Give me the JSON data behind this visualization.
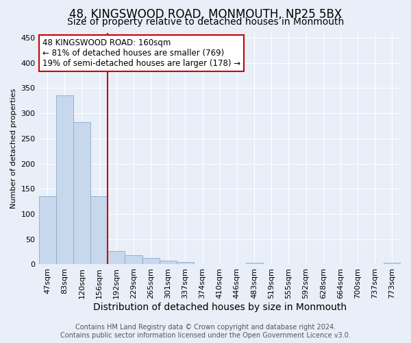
{
  "title": "48, KINGSWOOD ROAD, MONMOUTH, NP25 5BX",
  "subtitle": "Size of property relative to detached houses in Monmouth",
  "xlabel": "Distribution of detached houses by size in Monmouth",
  "ylabel": "Number of detached properties",
  "categories": [
    "47sqm",
    "83sqm",
    "120sqm",
    "156sqm",
    "192sqm",
    "229sqm",
    "265sqm",
    "301sqm",
    "337sqm",
    "374sqm",
    "410sqm",
    "446sqm",
    "483sqm",
    "519sqm",
    "555sqm",
    "592sqm",
    "628sqm",
    "664sqm",
    "700sqm",
    "737sqm",
    "773sqm"
  ],
  "values": [
    135,
    335,
    282,
    135,
    27,
    18,
    13,
    8,
    5,
    0,
    0,
    0,
    4,
    0,
    0,
    0,
    0,
    0,
    0,
    0,
    4
  ],
  "bar_color": "#c8d8ec",
  "bar_edge_color": "#8aaace",
  "vline_x_idx": 3,
  "vline_color": "#cc0000",
  "ylim": [
    0,
    460
  ],
  "yticks": [
    0,
    50,
    100,
    150,
    200,
    250,
    300,
    350,
    400,
    450
  ],
  "annotation_line1": "48 KINGSWOOD ROAD: 160sqm",
  "annotation_line2": "← 81% of detached houses are smaller (769)",
  "annotation_line3": "19% of semi-detached houses are larger (178) →",
  "annotation_box_edgecolor": "#cc0000",
  "footer_line1": "Contains HM Land Registry data © Crown copyright and database right 2024.",
  "footer_line2": "Contains public sector information licensed under the Open Government Licence v3.0.",
  "bg_color": "#e8eff8",
  "grid_color": "#ffffff",
  "title_fontsize": 12,
  "subtitle_fontsize": 10,
  "xlabel_fontsize": 10,
  "ylabel_fontsize": 8,
  "tick_fontsize": 8,
  "annotation_fontsize": 8.5,
  "footer_fontsize": 7
}
